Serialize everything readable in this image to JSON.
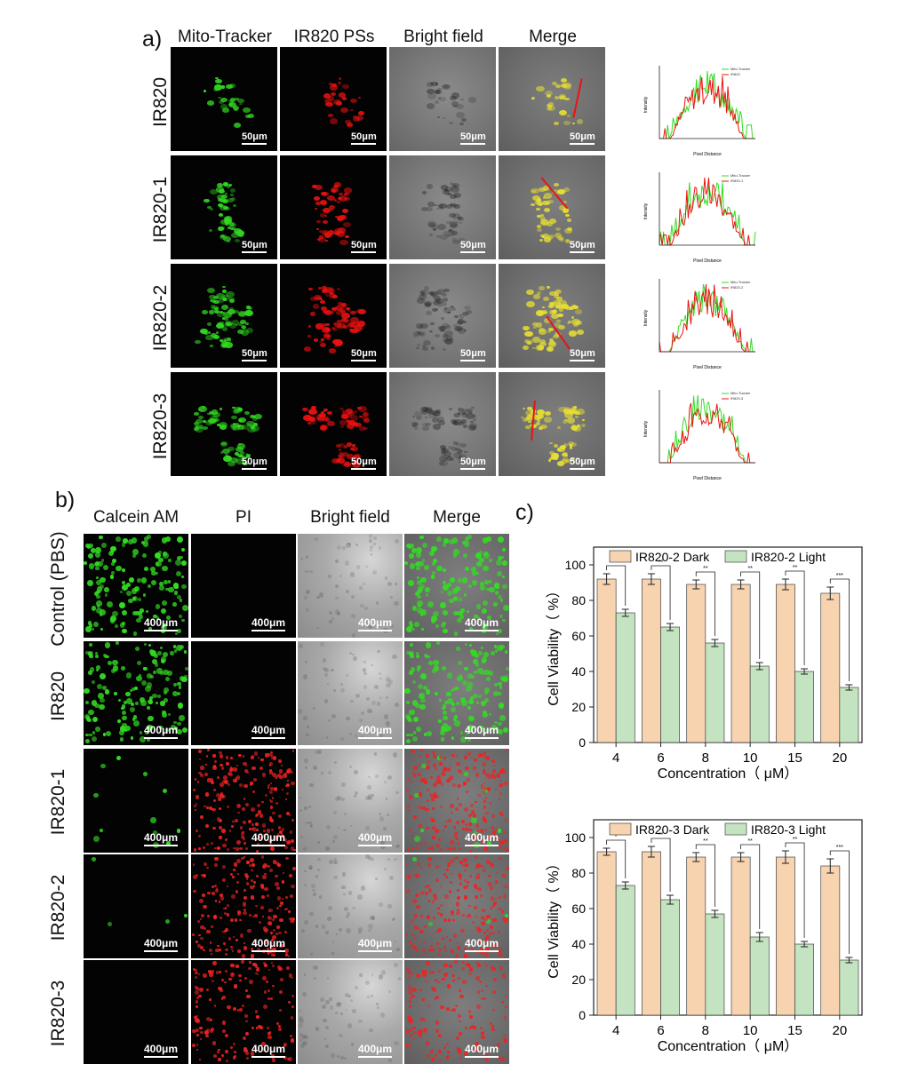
{
  "panel_a": {
    "letter": "a)",
    "columns": [
      "Mito-Tracker",
      "IR820 PSs",
      "Bright field",
      "Merge"
    ],
    "rows": [
      "IR820",
      "IR820-1",
      "IR820-2",
      "IR820-3"
    ],
    "scale_label": "50μm",
    "profile_xlabel": "Pixel Distance",
    "profile_ylabel": "Intensity",
    "profile_series": [
      "Mito-Tracker",
      "IR820",
      "IR820-1",
      "IR820-2",
      "IR820-3"
    ],
    "colors": {
      "green": "#33dd22",
      "red": "#ee1111"
    }
  },
  "panel_b": {
    "letter": "b)",
    "columns": [
      "Calcein AM",
      "PI",
      "Bright field",
      "Merge"
    ],
    "rows": [
      "Control (PBS)",
      "IR820",
      "IR820-1",
      "IR820-2",
      "IR820-3"
    ],
    "scale_label": "400μm"
  },
  "panel_c": {
    "letter": "c)"
  },
  "chart_data": [
    {
      "type": "bar",
      "categories": [
        "4",
        "6",
        "8",
        "10",
        "15",
        "20"
      ],
      "series": [
        {
          "name": "IR820-2 Dark",
          "values": [
            92,
            92,
            89,
            89,
            89,
            84
          ],
          "errors": [
            3,
            3,
            2.5,
            2.5,
            3,
            3.5
          ],
          "color": "#f7d3b0"
        },
        {
          "name": "IR820-2 Light",
          "values": [
            73,
            65,
            56,
            43,
            40,
            31
          ],
          "errors": [
            2,
            2,
            2,
            2,
            1.5,
            1.5
          ],
          "color": "#c4e3c0"
        }
      ],
      "significance": [
        "*",
        "**",
        "**",
        "**",
        "**",
        "***"
      ],
      "xlabel": "Concentration（ μM）",
      "ylabel": "Cell Viability（ %）",
      "ylim": [
        0,
        110
      ],
      "yticks": [
        0,
        20,
        40,
        60,
        80,
        100
      ],
      "legend": "top"
    },
    {
      "type": "bar",
      "categories": [
        "4",
        "6",
        "8",
        "10",
        "15",
        "20"
      ],
      "series": [
        {
          "name": "IR820-3 Dark",
          "values": [
            92,
            92,
            89,
            89,
            89,
            84
          ],
          "errors": [
            2,
            3,
            2.5,
            2.5,
            3.5,
            4
          ],
          "color": "#f7d3b0"
        },
        {
          "name": "IR820-3 Light",
          "values": [
            73,
            65,
            57,
            44,
            40,
            31
          ],
          "errors": [
            2,
            2.5,
            2,
            2.5,
            1.5,
            1.5
          ],
          "color": "#c4e3c0"
        }
      ],
      "significance": [
        "*",
        "**",
        "**",
        "**",
        "**",
        "***"
      ],
      "xlabel": "Concentration（ μM）",
      "ylabel": "Cell Viability（ %）",
      "ylim": [
        0,
        110
      ],
      "yticks": [
        0,
        20,
        40,
        60,
        80,
        100
      ],
      "legend": "top"
    }
  ]
}
